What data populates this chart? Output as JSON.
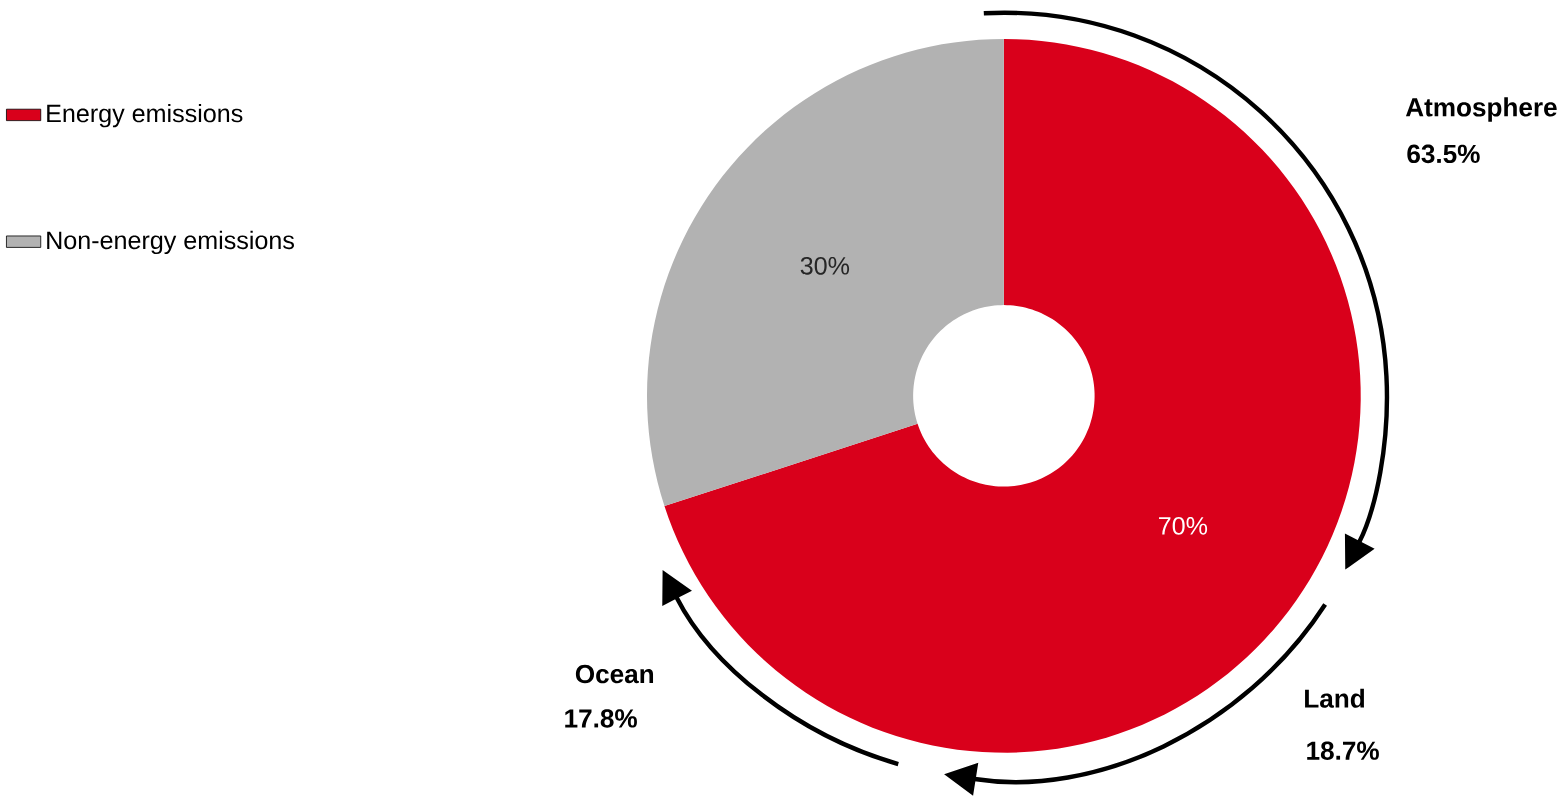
{
  "chart_data": {
    "type": "donut",
    "categories": [
      "Energy emissions",
      "Non-energy emissions"
    ],
    "values": [
      70,
      30
    ],
    "colors": [
      "#d9001b",
      "#b2b2b2"
    ],
    "value_labels": [
      "70%",
      "30%"
    ],
    "legend": "left",
    "annotations": [
      "Atmosphere",
      "63.5%",
      "Land",
      "18.7%",
      "Ocean",
      "17.8%"
    ]
  }
}
